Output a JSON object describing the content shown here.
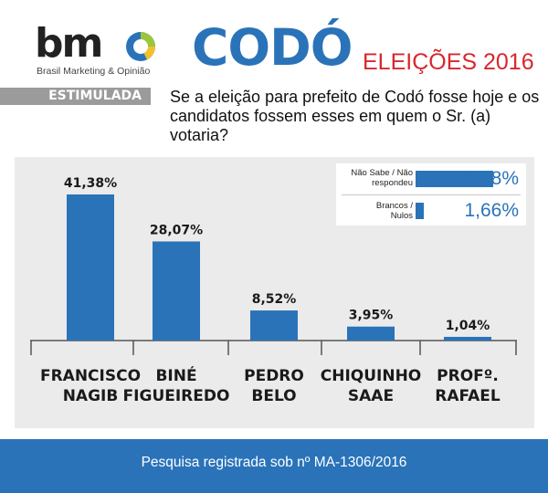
{
  "brand": {
    "logo_text": "bm",
    "tagline": "Brasil Marketing & Opinião"
  },
  "header": {
    "title": "CODÓ",
    "subtitle": "ELEIÇÕES 2016",
    "colors": {
      "title": "#2a73b9",
      "subtitle": "#d9272d"
    }
  },
  "tag": {
    "label": "ESTIMULADA",
    "color": "#9b9b9b"
  },
  "question": "Se a eleição para prefeito de Codó fosse hoje e os candidatos fossem esses em quem o Sr. (a) votaria?",
  "chart_data": {
    "type": "bar",
    "categories": [
      [
        "FRANCISCO",
        "NAGIB"
      ],
      [
        "BINÉ",
        "FIGUEIREDO"
      ],
      [
        "PEDRO",
        "BELO"
      ],
      [
        "CHIQUINHO",
        "SAAE"
      ],
      [
        "PROFº.",
        "RAFAEL"
      ]
    ],
    "values": [
      41.38,
      28.07,
      8.52,
      3.95,
      1.04
    ],
    "data_labels": [
      "41,38%",
      "28,07%",
      "8,52%",
      "3,95%",
      "1,04%"
    ],
    "unit": "%",
    "ylim": [
      0,
      45
    ],
    "grid": false,
    "bar_color": "#2a73b9",
    "inset": [
      {
        "label": [
          "Não Sabe / Não",
          "respondeu"
        ],
        "value": 15.38,
        "value_label": "15,38%"
      },
      {
        "label": [
          "Brancos /",
          "Nulos"
        ],
        "value": 1.66,
        "value_label": "1,66%"
      }
    ],
    "legend_position": "top-right"
  },
  "footer": {
    "text": "Pesquisa registrada sob nº MA-1306/2016",
    "color": "#2a73b9"
  },
  "colors": {
    "accent": "#2a73b9",
    "panel": "#ebebeb"
  },
  "icons": {
    "logo_mark": "pie-chart-icon"
  }
}
